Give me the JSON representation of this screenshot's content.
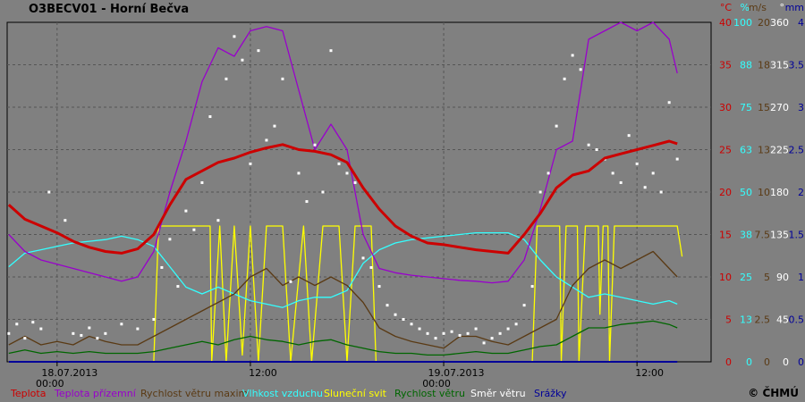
{
  "title": "O3BECV01 - Horní Bečva",
  "copyright": "© ČHMÚ",
  "colors": {
    "background": "#808080",
    "grid": "#555555",
    "temperature": "#cc0000",
    "ground_temp": "#9900cc",
    "gust": "#5a3a14",
    "humidity": "#33ffff",
    "sunshine": "#ffff00",
    "wind": "#006600",
    "direction": "#ffffff",
    "precip": "#000099"
  },
  "chart_data": {
    "type": "line",
    "x_ticks": [
      {
        "t": 0,
        "line1": "18.07.2013",
        "line2": "00:00"
      },
      {
        "t": 12,
        "line1": "12:00",
        "line2": ""
      },
      {
        "t": 24,
        "line1": "19.07.2013",
        "line2": "00:00"
      },
      {
        "t": 36,
        "line1": "12:00",
        "line2": ""
      }
    ],
    "x_range": [
      -3.1,
      40.6
    ],
    "axes": [
      {
        "name": "°C",
        "color": "#cc0000",
        "range": [
          0,
          40
        ],
        "ticks": [
          "0",
          "5",
          "10",
          "15",
          "20",
          "25",
          "30",
          "35",
          "40"
        ]
      },
      {
        "name": "%",
        "color": "#33ffff",
        "range": [
          0,
          100
        ],
        "ticks": [
          "0",
          "13",
          "25",
          "38",
          "50",
          "63",
          "75",
          "88",
          "100"
        ]
      },
      {
        "name": "m/s",
        "color": "#5a3a14",
        "range": [
          0,
          20
        ],
        "ticks": [
          "0",
          "2.5",
          "5",
          "7.5",
          "10",
          "13",
          "15",
          "18",
          "20"
        ]
      },
      {
        "name": "°",
        "color": "#ffffff",
        "range": [
          0,
          360
        ],
        "ticks": [
          "0",
          "45",
          "90",
          "135",
          "180",
          "225",
          "270",
          "315",
          "360"
        ]
      },
      {
        "name": "mm",
        "color": "#000099",
        "range": [
          0,
          4
        ],
        "ticks": [
          "0",
          "0.5",
          "1",
          "1.5",
          "2",
          "2.5",
          "3",
          "3.5",
          "4"
        ]
      }
    ],
    "series": [
      {
        "name": "Teplota",
        "key": "temp",
        "color": "#cc0000",
        "axis": 0
      },
      {
        "name": "Teplota přízemní",
        "key": "ground",
        "color": "#9900cc",
        "axis": 0
      },
      {
        "name": "Rychlost větru maxim",
        "key": "gust",
        "color": "#5a3a14",
        "axis": 2
      },
      {
        "name": "Vlhkost vzduchu",
        "key": "hum",
        "color": "#33ffff",
        "axis": 1
      },
      {
        "name": "Sluneční svit",
        "key": "sun",
        "color": "#ffff00",
        "axis": 1
      },
      {
        "name": "Rychlost větru",
        "key": "wind",
        "color": "#006600",
        "axis": 2
      },
      {
        "name": "Směr větru",
        "key": "dir",
        "color": "#ffffff",
        "axis": 3
      },
      {
        "name": "Srážky",
        "key": "precip",
        "color": "#000099",
        "axis": 4
      }
    ],
    "temp": [
      [
        -3,
        18.5
      ],
      [
        -2,
        16.8
      ],
      [
        -1,
        16
      ],
      [
        0,
        15.2
      ],
      [
        1,
        14.2
      ],
      [
        2,
        13.5
      ],
      [
        3,
        13
      ],
      [
        4,
        12.8
      ],
      [
        5,
        13.3
      ],
      [
        6,
        15
      ],
      [
        7,
        18.5
      ],
      [
        8,
        21.5
      ],
      [
        9,
        22.5
      ],
      [
        10,
        23.5
      ],
      [
        11,
        24
      ],
      [
        12,
        24.7
      ],
      [
        13,
        25.2
      ],
      [
        14,
        25.6
      ],
      [
        15,
        25
      ],
      [
        16,
        24.8
      ],
      [
        17,
        24.4
      ],
      [
        18,
        23.5
      ],
      [
        19,
        20.5
      ],
      [
        20,
        18
      ],
      [
        21,
        16
      ],
      [
        22,
        14.8
      ],
      [
        23,
        14
      ],
      [
        24,
        13.8
      ],
      [
        25,
        13.5
      ],
      [
        26,
        13.2
      ],
      [
        27,
        13
      ],
      [
        28,
        12.8
      ],
      [
        29,
        15
      ],
      [
        30,
        17.5
      ],
      [
        31,
        20.5
      ],
      [
        32,
        22
      ],
      [
        33,
        22.5
      ],
      [
        34,
        24
      ],
      [
        35,
        24.5
      ],
      [
        36,
        25
      ],
      [
        37,
        25.5
      ],
      [
        38,
        26
      ],
      [
        38.5,
        25.7
      ]
    ],
    "ground": [
      [
        -3,
        15
      ],
      [
        -2,
        13
      ],
      [
        -1,
        12
      ],
      [
        0,
        11.5
      ],
      [
        1,
        11
      ],
      [
        2,
        10.5
      ],
      [
        3,
        10
      ],
      [
        4,
        9.5
      ],
      [
        5,
        10
      ],
      [
        6,
        13
      ],
      [
        7,
        20
      ],
      [
        8,
        26
      ],
      [
        9,
        33
      ],
      [
        10,
        37
      ],
      [
        11,
        36
      ],
      [
        12,
        39
      ],
      [
        13,
        39.5
      ],
      [
        14,
        39
      ],
      [
        15,
        32
      ],
      [
        16,
        25
      ],
      [
        17,
        28
      ],
      [
        18,
        25
      ],
      [
        19,
        15
      ],
      [
        20,
        11
      ],
      [
        21,
        10.5
      ],
      [
        22,
        10.2
      ],
      [
        23,
        10
      ],
      [
        24,
        9.8
      ],
      [
        25,
        9.6
      ],
      [
        26,
        9.5
      ],
      [
        27,
        9.3
      ],
      [
        28,
        9.5
      ],
      [
        29,
        12
      ],
      [
        30,
        18
      ],
      [
        31,
        25
      ],
      [
        32,
        26
      ],
      [
        33,
        38
      ],
      [
        34,
        39
      ],
      [
        35,
        40
      ],
      [
        36,
        39
      ],
      [
        37,
        40
      ],
      [
        38,
        38
      ],
      [
        38.5,
        34
      ]
    ],
    "hum": [
      [
        -3,
        28
      ],
      [
        -2,
        32
      ],
      [
        -1,
        33
      ],
      [
        0,
        34
      ],
      [
        1,
        35
      ],
      [
        2,
        35.5
      ],
      [
        3,
        36
      ],
      [
        4,
        37
      ],
      [
        5,
        36
      ],
      [
        6,
        34
      ],
      [
        7,
        28
      ],
      [
        8,
        22
      ],
      [
        9,
        20
      ],
      [
        10,
        22
      ],
      [
        11,
        20
      ],
      [
        12,
        18
      ],
      [
        13,
        17
      ],
      [
        14,
        16
      ],
      [
        15,
        18
      ],
      [
        16,
        19
      ],
      [
        17,
        19
      ],
      [
        18,
        21
      ],
      [
        19,
        29
      ],
      [
        20,
        33
      ],
      [
        21,
        35
      ],
      [
        22,
        36
      ],
      [
        23,
        36.5
      ],
      [
        24,
        37
      ],
      [
        25,
        37.5
      ],
      [
        26,
        38
      ],
      [
        27,
        38
      ],
      [
        28,
        38
      ],
      [
        29,
        36
      ],
      [
        30,
        30
      ],
      [
        31,
        25
      ],
      [
        32,
        22
      ],
      [
        33,
        19
      ],
      [
        34,
        20
      ],
      [
        35,
        19
      ],
      [
        36,
        18
      ],
      [
        37,
        17
      ],
      [
        38,
        18
      ],
      [
        38.5,
        17
      ]
    ],
    "sun": [
      [
        -3,
        0
      ],
      [
        6,
        0
      ],
      [
        6.3,
        40
      ],
      [
        9.5,
        40
      ],
      [
        9.6,
        0
      ],
      [
        10.1,
        40
      ],
      [
        10.5,
        0
      ],
      [
        11,
        40
      ],
      [
        11.5,
        2
      ],
      [
        12,
        40
      ],
      [
        12.5,
        0
      ],
      [
        13,
        40
      ],
      [
        14,
        40
      ],
      [
        14.5,
        0
      ],
      [
        15.3,
        40
      ],
      [
        15.8,
        0
      ],
      [
        16.5,
        40
      ],
      [
        17.5,
        40
      ],
      [
        18,
        0
      ],
      [
        18.5,
        40
      ],
      [
        19.5,
        40
      ],
      [
        19.8,
        0
      ],
      [
        29.5,
        0
      ],
      [
        29.8,
        40
      ],
      [
        31.2,
        40
      ],
      [
        31.3,
        0
      ],
      [
        31.6,
        40
      ],
      [
        32.3,
        40
      ],
      [
        32.4,
        0
      ],
      [
        32.8,
        40
      ],
      [
        33.6,
        40
      ],
      [
        33.7,
        14
      ],
      [
        33.9,
        40
      ],
      [
        34.2,
        40
      ],
      [
        34.3,
        0
      ],
      [
        34.6,
        40
      ],
      [
        38.5,
        40
      ],
      [
        38.8,
        31
      ]
    ],
    "gust": [
      [
        -3,
        1
      ],
      [
        -2,
        1.5
      ],
      [
        -1,
        1
      ],
      [
        0,
        1.2
      ],
      [
        1,
        1
      ],
      [
        2,
        1.5
      ],
      [
        3,
        1.2
      ],
      [
        4,
        1
      ],
      [
        5,
        1
      ],
      [
        6,
        1.5
      ],
      [
        7,
        2
      ],
      [
        8,
        2.5
      ],
      [
        9,
        3
      ],
      [
        10,
        3.5
      ],
      [
        11,
        4
      ],
      [
        12,
        5
      ],
      [
        13,
        5.5
      ],
      [
        14,
        4.5
      ],
      [
        15,
        5
      ],
      [
        16,
        4.5
      ],
      [
        17,
        5
      ],
      [
        18,
        4.5
      ],
      [
        19,
        3.5
      ],
      [
        20,
        2
      ],
      [
        21,
        1.5
      ],
      [
        22,
        1.2
      ],
      [
        23,
        1
      ],
      [
        24,
        0.8
      ],
      [
        25,
        1.5
      ],
      [
        26,
        1.5
      ],
      [
        27,
        1.2
      ],
      [
        28,
        1
      ],
      [
        29,
        1.5
      ],
      [
        30,
        2
      ],
      [
        31,
        2.5
      ],
      [
        32,
        4.5
      ],
      [
        33,
        5.5
      ],
      [
        34,
        6
      ],
      [
        35,
        5.5
      ],
      [
        36,
        6
      ],
      [
        37,
        6.5
      ],
      [
        38,
        5.5
      ],
      [
        38.5,
        5
      ]
    ],
    "wind": [
      [
        -3,
        0.5
      ],
      [
        -2,
        0.7
      ],
      [
        -1,
        0.5
      ],
      [
        0,
        0.6
      ],
      [
        1,
        0.5
      ],
      [
        2,
        0.6
      ],
      [
        3,
        0.5
      ],
      [
        4,
        0.5
      ],
      [
        5,
        0.5
      ],
      [
        6,
        0.6
      ],
      [
        7,
        0.8
      ],
      [
        8,
        1
      ],
      [
        9,
        1.2
      ],
      [
        10,
        1
      ],
      [
        11,
        1.3
      ],
      [
        12,
        1.5
      ],
      [
        13,
        1.3
      ],
      [
        14,
        1.2
      ],
      [
        15,
        1
      ],
      [
        16,
        1.2
      ],
      [
        17,
        1.3
      ],
      [
        18,
        1
      ],
      [
        19,
        0.8
      ],
      [
        20,
        0.6
      ],
      [
        21,
        0.5
      ],
      [
        22,
        0.5
      ],
      [
        23,
        0.4
      ],
      [
        24,
        0.4
      ],
      [
        25,
        0.5
      ],
      [
        26,
        0.6
      ],
      [
        27,
        0.5
      ],
      [
        28,
        0.5
      ],
      [
        29,
        0.7
      ],
      [
        30,
        0.9
      ],
      [
        31,
        1
      ],
      [
        32,
        1.5
      ],
      [
        33,
        2
      ],
      [
        34,
        2
      ],
      [
        35,
        2.2
      ],
      [
        36,
        2.3
      ],
      [
        37,
        2.4
      ],
      [
        38,
        2.2
      ],
      [
        38.5,
        2
      ]
    ],
    "dir": [
      [
        -3,
        30
      ],
      [
        -2.5,
        40
      ],
      [
        -2,
        25
      ],
      [
        -1.5,
        42
      ],
      [
        -1,
        35
      ],
      [
        -0.5,
        180
      ],
      [
        0.5,
        150
      ],
      [
        1,
        30
      ],
      [
        1.5,
        28
      ],
      [
        2,
        36
      ],
      [
        2.5,
        25
      ],
      [
        3,
        30
      ],
      [
        4,
        40
      ],
      [
        5,
        35
      ],
      [
        6,
        45
      ],
      [
        6.5,
        100
      ],
      [
        7,
        130
      ],
      [
        7.5,
        80
      ],
      [
        8,
        160
      ],
      [
        8.5,
        140
      ],
      [
        9,
        190
      ],
      [
        9.5,
        260
      ],
      [
        10,
        150
      ],
      [
        10.5,
        300
      ],
      [
        11,
        345
      ],
      [
        11.5,
        320
      ],
      [
        12,
        210
      ],
      [
        12.5,
        330
      ],
      [
        13,
        235
      ],
      [
        13.5,
        250
      ],
      [
        14,
        300
      ],
      [
        14.5,
        85
      ],
      [
        15,
        200
      ],
      [
        15.5,
        170
      ],
      [
        16,
        230
      ],
      [
        16.5,
        180
      ],
      [
        17,
        330
      ],
      [
        17.5,
        210
      ],
      [
        18,
        200
      ],
      [
        18.5,
        190
      ],
      [
        19,
        110
      ],
      [
        19.5,
        100
      ],
      [
        20,
        80
      ],
      [
        20.5,
        60
      ],
      [
        21,
        50
      ],
      [
        21.5,
        45
      ],
      [
        22,
        40
      ],
      [
        22.5,
        35
      ],
      [
        23,
        30
      ],
      [
        23.5,
        25
      ],
      [
        24,
        30
      ],
      [
        24.5,
        32
      ],
      [
        25,
        28
      ],
      [
        25.5,
        30
      ],
      [
        26,
        35
      ],
      [
        26.5,
        20
      ],
      [
        27,
        25
      ],
      [
        27.5,
        30
      ],
      [
        28,
        35
      ],
      [
        28.5,
        40
      ],
      [
        29,
        60
      ],
      [
        29.5,
        80
      ],
      [
        30,
        180
      ],
      [
        30.5,
        200
      ],
      [
        31,
        250
      ],
      [
        31.5,
        300
      ],
      [
        32,
        325
      ],
      [
        32.5,
        310
      ],
      [
        33,
        230
      ],
      [
        33.5,
        225
      ],
      [
        34,
        215
      ],
      [
        34.5,
        200
      ],
      [
        35,
        190
      ],
      [
        35.5,
        240
      ],
      [
        36,
        210
      ],
      [
        36.5,
        185
      ],
      [
        37,
        200
      ],
      [
        37.5,
        180
      ],
      [
        38,
        275
      ],
      [
        38.5,
        215
      ]
    ],
    "precip": [
      [
        -3,
        0
      ],
      [
        38.5,
        0
      ]
    ]
  }
}
